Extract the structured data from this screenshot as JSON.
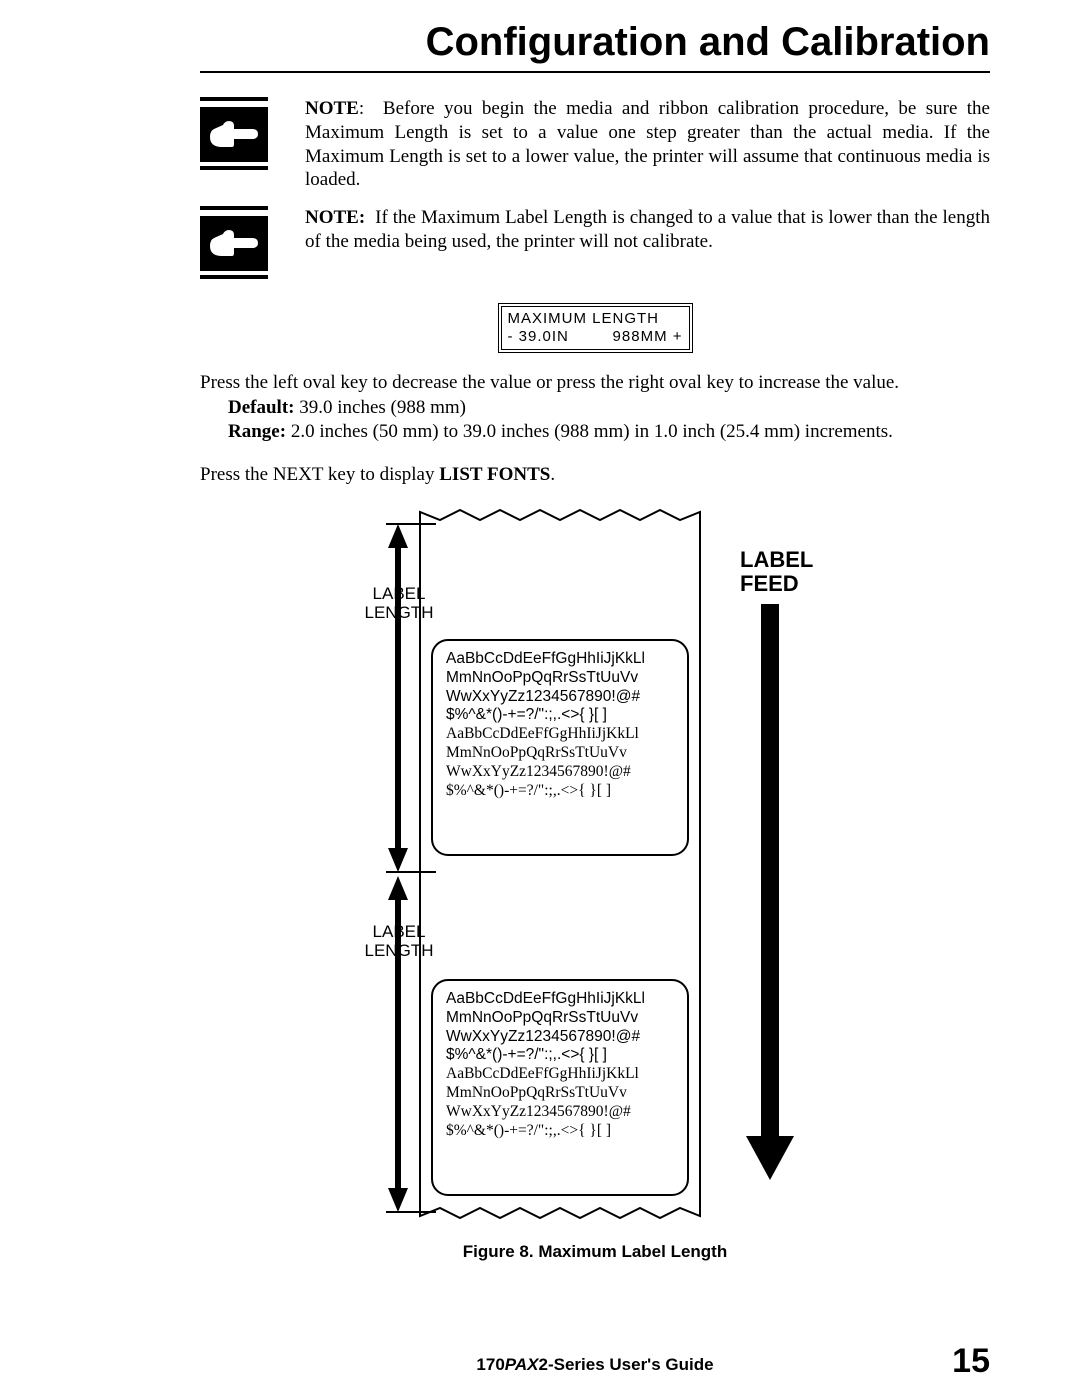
{
  "title": "Configuration and Calibration",
  "note1": {
    "strong": "NOTE",
    "text": ":  Before you begin the media and ribbon calibration procedure, be sure the Maximum Length is set to a value one step greater than the actual media. If the Maximum Length is set to a lower value, the printer will assume that continuous media is loaded."
  },
  "note2": {
    "strong": "NOTE:",
    "text": "  If the Maximum Label Length is changed to a value that is lower than the length of the media being used, the printer will not calibrate."
  },
  "lcd": {
    "line1": "MAXIMUM LENGTH",
    "left": "- 39.0IN",
    "right": "988MM +"
  },
  "body": {
    "p1": "Press the left oval key to decrease the value or press the right oval key to increase the value.",
    "default_label": "Default:",
    "default_value": "  39.0 inches (988 mm)",
    "range_label": "Range:",
    "range_value": "  2.0 inches (50 mm) to 39.0 inches (988 mm) in 1.0 inch (25.4 mm) increments.",
    "p2a": "Press the NEXT key to display ",
    "p2b": "LIST FONTS",
    "p2c": "."
  },
  "figure": {
    "label_length": "LABEL\nLENGTH",
    "label_feed": "LABEL\nFEED",
    "sample_lines_sans": [
      "AaBbCcDdEeFfGgHhIiJjKkLl",
      "MmNnOoPpQqRrSsTtUuVv",
      "WwXxYyZz1234567890!@#",
      "$%^&*()-+=?/\":;,.<>{ }[ ]"
    ],
    "sample_lines_serif": [
      "AaBbCcDdEeFfGgHhIiJjKkLl",
      "MmNnOoPpQqRrSsTtUuVv",
      "WwXxYyZz1234567890!@#",
      "$%^&*()-+=?/\":;,.<>{ }[ ]"
    ],
    "caption": "Figure 8.  Maximum Label Length"
  },
  "footer": {
    "guide_a": "170",
    "guide_b": "PAX",
    "guide_c": "2-Series User's Guide",
    "page": "15"
  },
  "style": {
    "colors": {
      "fg": "#000000",
      "bg": "#ffffff"
    },
    "feed_arrow_width": 18
  }
}
